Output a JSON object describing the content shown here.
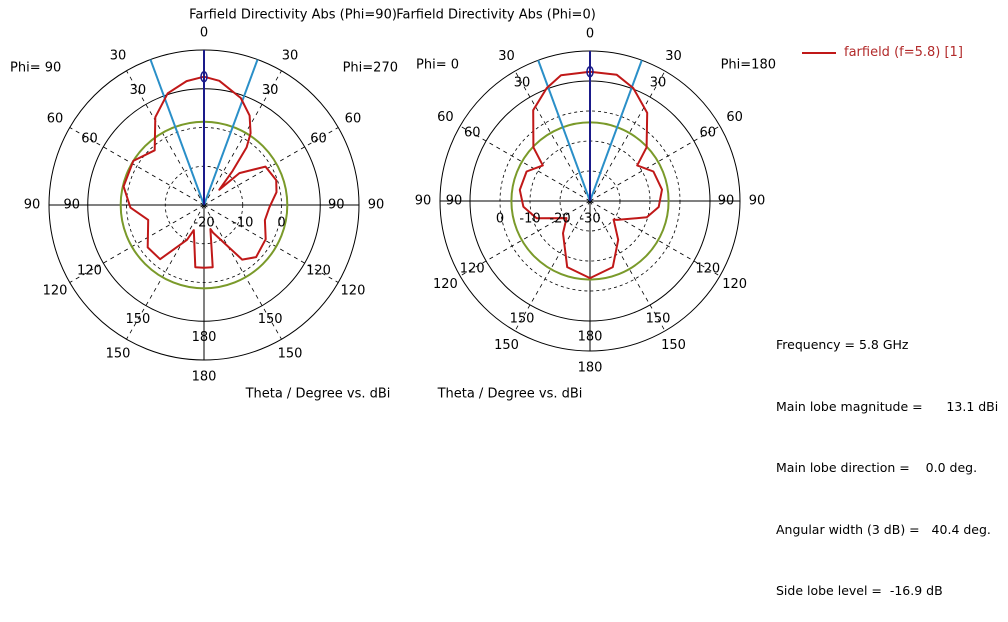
{
  "legend": {
    "label": "farfield (f=5.8) [1]",
    "color": "#c01818"
  },
  "info": {
    "frequency": "Frequency = 5.8 GHz",
    "main_lobe_magnitude": "Main lobe magnitude =      13.1 dBi",
    "main_lobe_direction": "Main lobe direction =    0.0 deg.",
    "angular_width": "Angular width (3 dB) =   40.4 deg.",
    "side_lobe_level": "Side lobe level =  -16.9 dB"
  },
  "colors": {
    "curve": "#c01818",
    "beam": "#2a8fc8",
    "main_dir": "#1a1a8a",
    "sidelobe_ring": "#7a9a2a"
  },
  "chart_data": [
    {
      "type": "polar",
      "title": "Farfield Directivity Abs (Phi=90)",
      "left_label": "Phi= 90",
      "right_label": "Phi=270",
      "xlabel": "Theta / Degree vs. dBi",
      "r_range_dBi": [
        -20,
        20
      ],
      "inner_ring_dBi": 10,
      "level_rings_dBi": [
        -10,
        0
      ],
      "level_labels": [
        "-20",
        "-10",
        "0"
      ],
      "level_label_values": [
        -20,
        -10,
        0
      ],
      "sidelobe_ring_dBi": 1.5,
      "main_lobe_deg": 0,
      "main_lobe_dBi": 13.1,
      "beam_width_deg": 40.4,
      "angle_labels": [
        "0",
        "30",
        "60",
        "90",
        "120",
        "150",
        "180",
        "150",
        "120",
        "90",
        "60",
        "30"
      ],
      "inner_angle_labels": [
        "30",
        "60",
        "90",
        "120",
        "150",
        "180",
        "150",
        "120",
        "90",
        "60",
        "30"
      ],
      "theta_deg": [
        -180,
        -172,
        -158,
        -154,
        -141,
        -127,
        -105,
        -92,
        -77,
        -58,
        -42,
        -29,
        -18,
        -8,
        0,
        7,
        19,
        27,
        33,
        36.5,
        40,
        45,
        48,
        58,
        71,
        80,
        92,
        104,
        119,
        135,
        145,
        162,
        165,
        172,
        180
      ],
      "dBi": [
        -3.8,
        -3.8,
        -13,
        -10,
        -2,
        -1.8,
        -5.1,
        -1,
        1.3,
        1.5,
        -1,
        5.9,
        10.3,
        12.3,
        13.1,
        12.3,
        9.2,
        5.9,
        2.1,
        -1.5,
        -8.5,
        -14.4,
        -7.7,
        -1.3,
        -0.3,
        -1,
        -3.1,
        -3.8,
        -1.8,
        -1,
        -2.8,
        -12.5,
        -13.6,
        -3.8,
        -3.8
      ]
    },
    {
      "type": "polar",
      "title": "Farfield Directivity Abs (Phi=0)",
      "left_label": "Phi=  0",
      "right_label": "Phi=180",
      "xlabel": "Theta / Degree vs. dBi",
      "r_range_dBi": [
        -30,
        20
      ],
      "inner_ring_dBi": 10,
      "level_rings_dBi": [
        -20,
        -10,
        0
      ],
      "level_labels": [
        "0",
        "-10",
        "-20",
        "-30"
      ],
      "level_label_values": [
        0,
        -10,
        -20,
        -30
      ],
      "sidelobe_ring_dBi": -3.8,
      "main_lobe_deg": 0,
      "main_lobe_dBi": 13.1,
      "beam_width_deg": 40.4,
      "angle_labels": [
        "0",
        "30",
        "60",
        "90",
        "120",
        "150",
        "180",
        "150",
        "120",
        "90",
        "60",
        "30"
      ],
      "inner_angle_labels": [
        "30",
        "60",
        "90",
        "120",
        "150",
        "180",
        "150",
        "120",
        "90",
        "60",
        "30"
      ],
      "theta_deg": [
        -180,
        -161,
        -140,
        -126,
        -108,
        -95,
        -81,
        -65,
        -53,
        -46.5,
        -32,
        -21,
        -13,
        0,
        12,
        21,
        33,
        46.5,
        53,
        65,
        81,
        95,
        106,
        125,
        128,
        144,
        161,
        180
      ],
      "dBi": [
        -4.3,
        -6.7,
        -16,
        -20.3,
        -11.3,
        -7.7,
        -6.3,
        -6.7,
        -10.3,
        -4,
        5.7,
        10.3,
        13,
        13.1,
        13,
        10.3,
        5,
        -4,
        -10.3,
        -6.7,
        -5.7,
        -7,
        -10.3,
        -19,
        -20,
        -14,
        -6.7,
        -4.3
      ]
    }
  ]
}
